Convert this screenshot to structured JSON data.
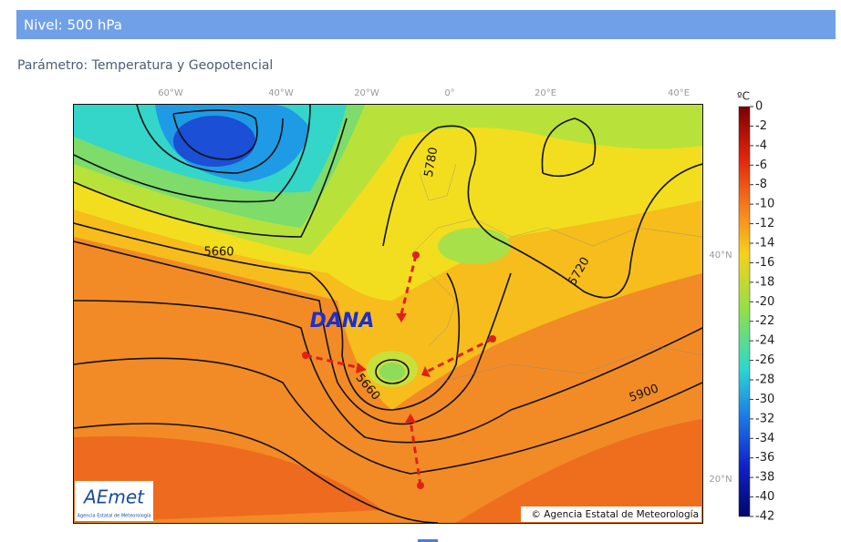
{
  "header": {
    "title": "Nivel: 500 hPa"
  },
  "parameter": "Parámetro: Temperatura y Geopotencial",
  "map": {
    "top_labels": [
      "60°W",
      "40°W",
      "20°W",
      "0°",
      "20°E",
      "40°E"
    ],
    "right_labels": [
      "40°N",
      "20°N"
    ],
    "contour_labels": [
      "5780",
      "5660",
      "5720",
      "5660",
      "5900"
    ],
    "annotation": "DANA",
    "logo": "AEmet",
    "logo_subtitle": "Agencia Estatal de Meteorología",
    "copyright": "© Agencia Estatal de Meteorología"
  },
  "colorbar": {
    "unit": "ºC",
    "ticks": [
      0,
      -2,
      -4,
      -6,
      -8,
      -10,
      -12,
      -14,
      -16,
      -18,
      -20,
      -22,
      -24,
      -26,
      -28,
      -30,
      -32,
      -34,
      -36,
      -38,
      -40,
      -42
    ]
  }
}
